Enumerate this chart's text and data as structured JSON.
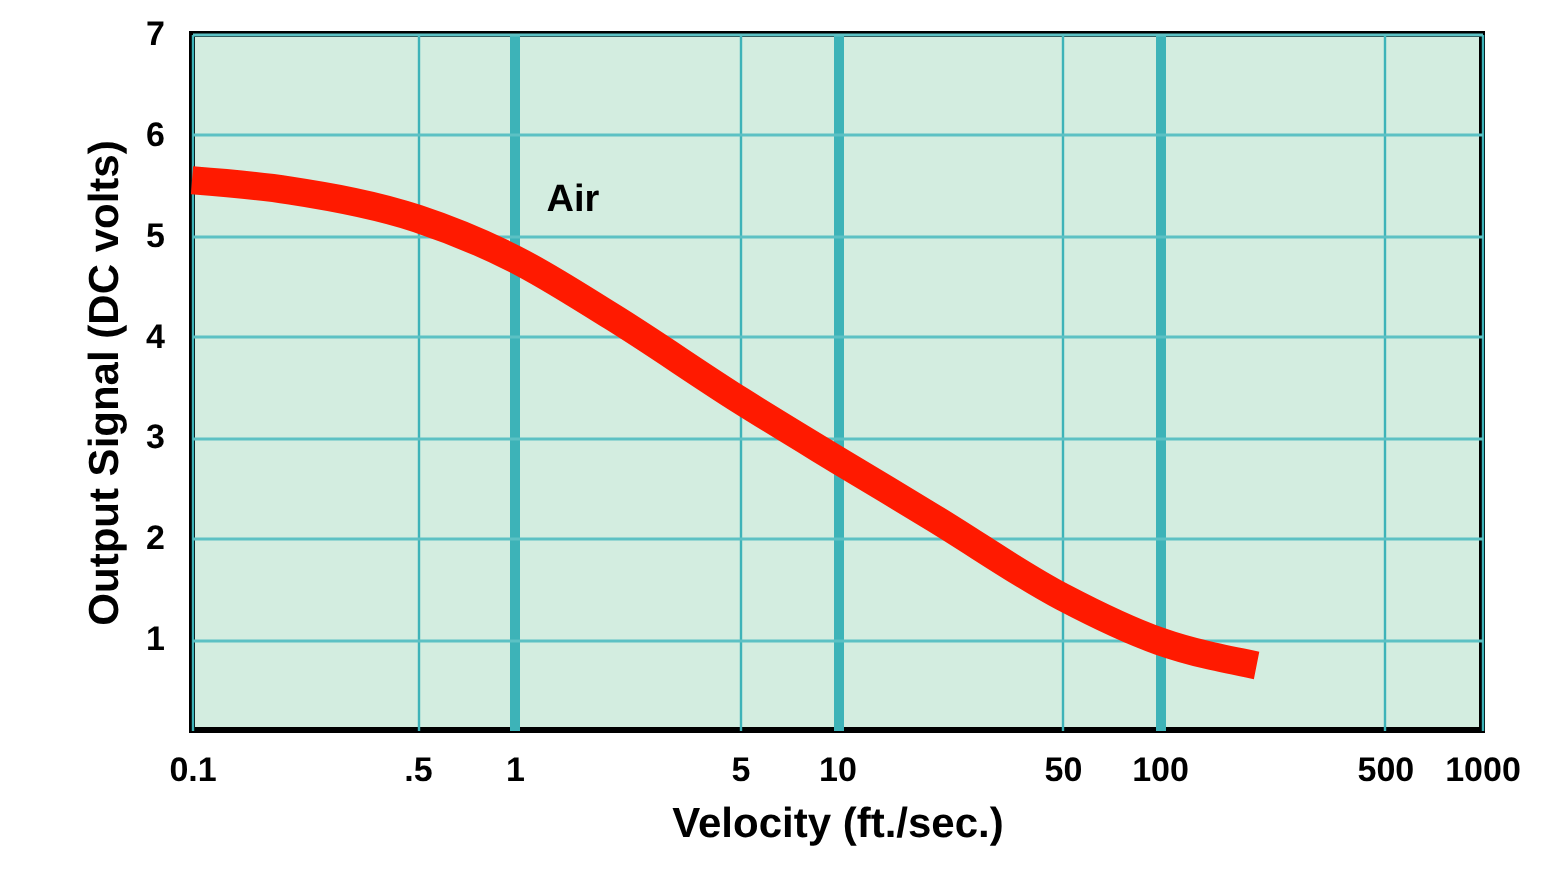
{
  "chart_data": {
    "type": "line",
    "xlabel": "Velocity (ft./sec.)",
    "ylabel": "Output Signal (DC volts)",
    "log": "x",
    "grid": true,
    "line_style": "solid",
    "x": [
      0.1,
      0.2,
      0.5,
      1,
      2,
      5,
      10,
      20,
      50,
      100,
      200
    ],
    "series": [
      {
        "name": "Air",
        "color": "#ff1a00",
        "values": [
          5.55,
          5.45,
          5.17,
          4.77,
          4.2,
          3.37,
          2.78,
          2.2,
          1.42,
          0.98,
          0.74
        ]
      }
    ],
    "xlim": [
      0.1,
      1000
    ],
    "xticks": [
      0.1,
      {
        "value": 0.5,
        "label": ".5"
      },
      1,
      5,
      10,
      50,
      100,
      500,
      1000
    ],
    "ylim": [
      0.1,
      7
    ],
    "yticks": [
      1,
      2,
      3,
      4,
      5,
      6,
      7
    ]
  }
}
